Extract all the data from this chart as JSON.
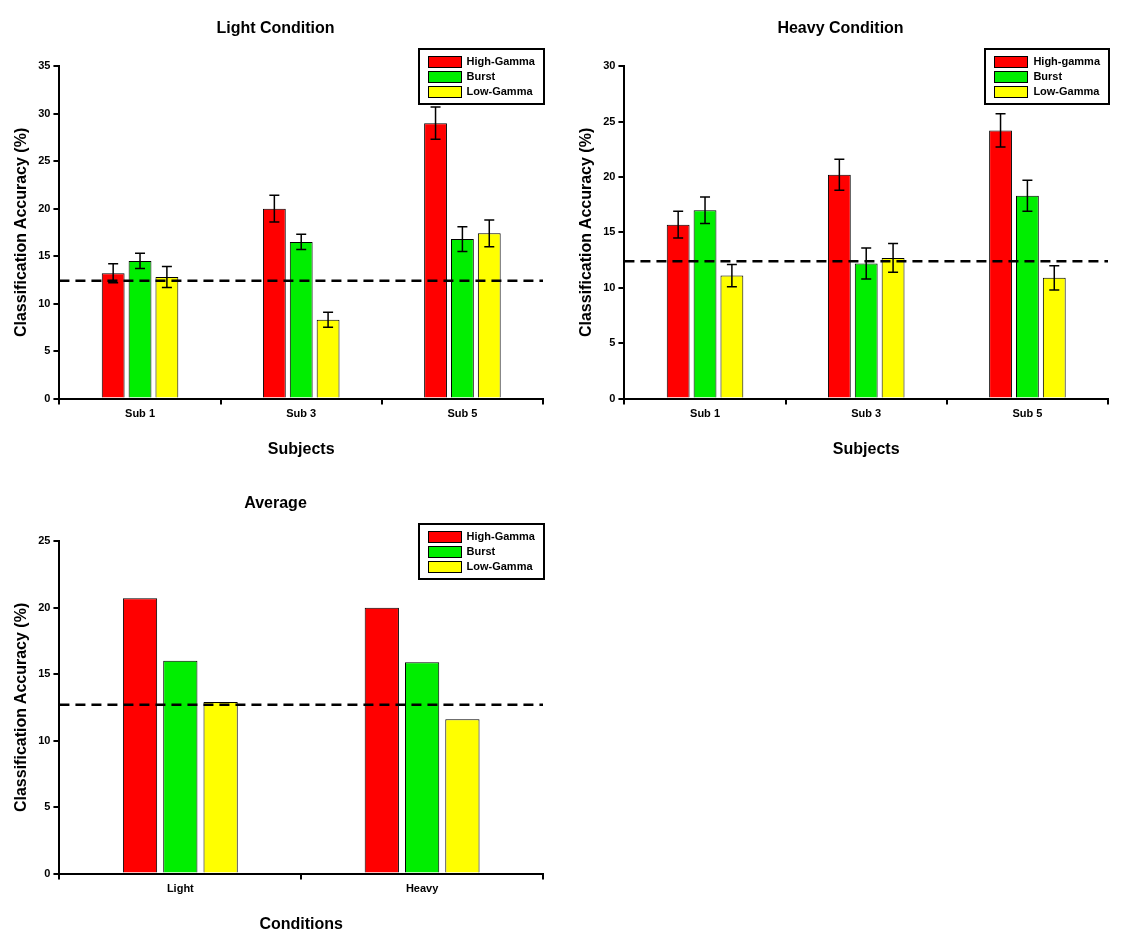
{
  "chart_data": [
    {
      "type": "bar",
      "title": "Light Condition",
      "xlabel": "Subjects",
      "ylabel": "Classification Accuracy (%)",
      "categories": [
        "Sub 1",
        "Sub 3",
        "Sub 5"
      ],
      "ylim": [
        0,
        35
      ],
      "yticks": [
        0,
        5,
        10,
        15,
        20,
        25,
        30,
        35
      ],
      "legend": "top right",
      "grid": false,
      "series": [
        {
          "name": "High-Gamma",
          "color": "#ff0000",
          "values": [
            13.2,
            20.0,
            29.0
          ],
          "errors": [
            1.0,
            1.4,
            1.7
          ]
        },
        {
          "name": "Burst",
          "color": "#00ee00",
          "values": [
            14.5,
            16.5,
            16.8
          ],
          "errors": [
            0.8,
            0.8,
            1.3
          ]
        },
        {
          "name": "Low-Gamma",
          "color": "#ffff00",
          "values": [
            12.8,
            8.3,
            17.4
          ],
          "errors": [
            1.1,
            0.8,
            1.4
          ]
        }
      ],
      "ref_lines": [
        {
          "axis": "y",
          "value": 12.4,
          "line_style": "dashed",
          "color": "#000000"
        }
      ]
    },
    {
      "type": "bar",
      "title": "Heavy Condition",
      "xlabel": "Subjects",
      "ylabel": "Classification Accuracy (%)",
      "categories": [
        "Sub 1",
        "Sub 3",
        "Sub 5"
      ],
      "ylim": [
        0,
        30
      ],
      "yticks": [
        0,
        5,
        10,
        15,
        20,
        25,
        30
      ],
      "legend": "top right",
      "grid": false,
      "series": [
        {
          "name": "High-gamma",
          "color": "#ff0000",
          "values": [
            15.7,
            20.2,
            24.2
          ],
          "errors": [
            1.2,
            1.4,
            1.5
          ]
        },
        {
          "name": "Burst",
          "color": "#00ee00",
          "values": [
            17.0,
            12.2,
            18.3
          ],
          "errors": [
            1.2,
            1.4,
            1.4
          ]
        },
        {
          "name": "Low-Gamma",
          "color": "#ffff00",
          "values": [
            11.1,
            12.7,
            10.9
          ],
          "errors": [
            1.0,
            1.3,
            1.1
          ]
        }
      ],
      "ref_lines": [
        {
          "axis": "y",
          "value": 12.4,
          "line_style": "dashed",
          "color": "#000000"
        }
      ]
    },
    {
      "type": "bar",
      "title": "Average",
      "xlabel": "Conditions",
      "ylabel": "Classification Accuracy (%)",
      "categories": [
        "Light",
        "Heavy"
      ],
      "ylim": [
        0,
        25
      ],
      "yticks": [
        0,
        5,
        10,
        15,
        20,
        25
      ],
      "legend": "top right",
      "grid": false,
      "series": [
        {
          "name": "High-Gamma",
          "color": "#ff0000",
          "values": [
            20.7,
            20.0
          ]
        },
        {
          "name": "Burst",
          "color": "#00ee00",
          "values": [
            16.0,
            15.9
          ]
        },
        {
          "name": "Low-Gamma",
          "color": "#ffff00",
          "values": [
            12.9,
            11.6
          ]
        }
      ],
      "ref_lines": [
        {
          "axis": "y",
          "value": 12.7,
          "line_style": "dashed",
          "color": "#000000"
        }
      ]
    }
  ]
}
